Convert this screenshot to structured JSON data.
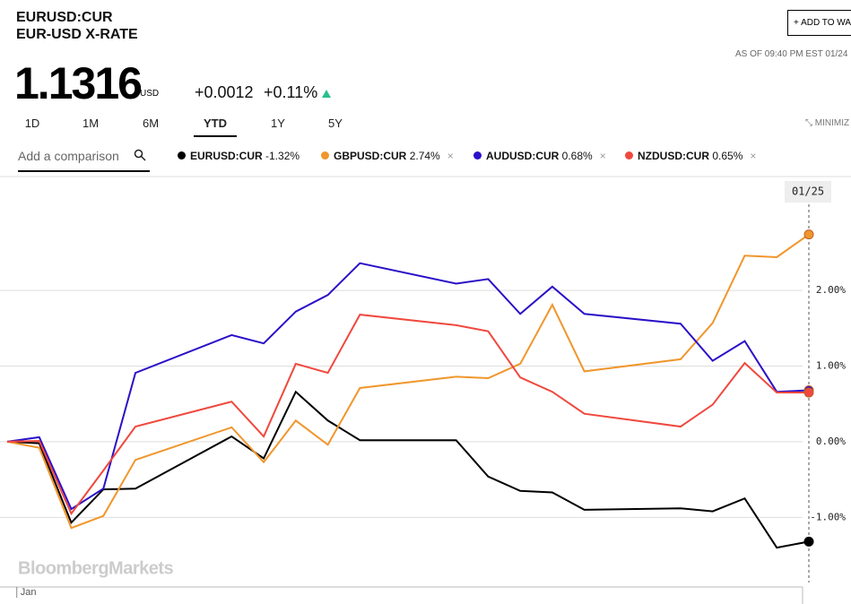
{
  "header": {
    "ticker": "EURUSD:CUR",
    "name": "EUR-USD X-RATE",
    "price": "1.1316",
    "currency": "USD",
    "change": "+0.0012",
    "change_pct": "+0.11%",
    "watch_button": "ADD TO WA",
    "as_of": "AS OF 09:40 PM EST 01/24"
  },
  "ranges": [
    "1D",
    "1M",
    "6M",
    "YTD",
    "1Y",
    "5Y"
  ],
  "selected_range": "YTD",
  "minimize": "MINIMIZ",
  "comparison_placeholder": "Add a comparison",
  "chart_data": {
    "type": "line",
    "watermark": "BloombergMarkets",
    "crosshair_label": "01/25",
    "x": [
      0,
      1,
      2,
      3,
      4,
      7,
      8,
      9,
      10,
      11,
      14,
      15,
      16,
      17,
      18,
      21,
      22,
      23,
      24,
      25
    ],
    "xlim": [
      0,
      25
    ],
    "xticks": [
      {
        "value": 0.3,
        "label": "Jan"
      }
    ],
    "ylim": [
      -1.92,
      3.47
    ],
    "yticks": [
      {
        "value": -1,
        "label": "-1.00%"
      },
      {
        "value": 0,
        "label": "0.00%"
      },
      {
        "value": 1,
        "label": "1.00%"
      },
      {
        "value": 2,
        "label": "2.00%"
      }
    ],
    "grid": true,
    "series": [
      {
        "name": "EURUSD:CUR",
        "change": "-1.32%",
        "color": "#000000",
        "values": [
          0,
          -0.02,
          -1.07,
          -0.63,
          -0.62,
          0.07,
          -0.22,
          0.66,
          0.28,
          0.02,
          0.02,
          -0.46,
          -0.65,
          -0.67,
          -0.9,
          -0.88,
          -0.92,
          -0.75,
          -1.4,
          -1.32
        ]
      },
      {
        "name": "GBPUSD:CUR",
        "change": "2.74%",
        "color": "#f0962c",
        "values": [
          0,
          -0.08,
          -1.14,
          -0.98,
          -0.24,
          0.19,
          -0.27,
          0.28,
          -0.04,
          0.71,
          0.86,
          0.84,
          1.03,
          1.81,
          0.93,
          1.09,
          1.57,
          2.46,
          2.44,
          2.74
        ]
      },
      {
        "name": "AUDUSD:CUR",
        "change": "0.68%",
        "color": "#2a10c8",
        "values": [
          0,
          0.06,
          -0.89,
          -0.62,
          0.91,
          1.41,
          1.3,
          1.72,
          1.94,
          2.36,
          2.09,
          2.15,
          1.69,
          2.05,
          1.69,
          1.56,
          1.07,
          1.33,
          0.66,
          0.68
        ]
      },
      {
        "name": "NZDUSD:CUR",
        "change": "0.65%",
        "color": "#f0483e",
        "values": [
          0,
          0.01,
          -0.95,
          -0.38,
          0.2,
          0.53,
          0.07,
          1.03,
          0.91,
          1.68,
          1.54,
          1.46,
          0.85,
          0.66,
          0.37,
          0.2,
          0.49,
          1.04,
          0.65,
          0.65
        ]
      }
    ]
  }
}
